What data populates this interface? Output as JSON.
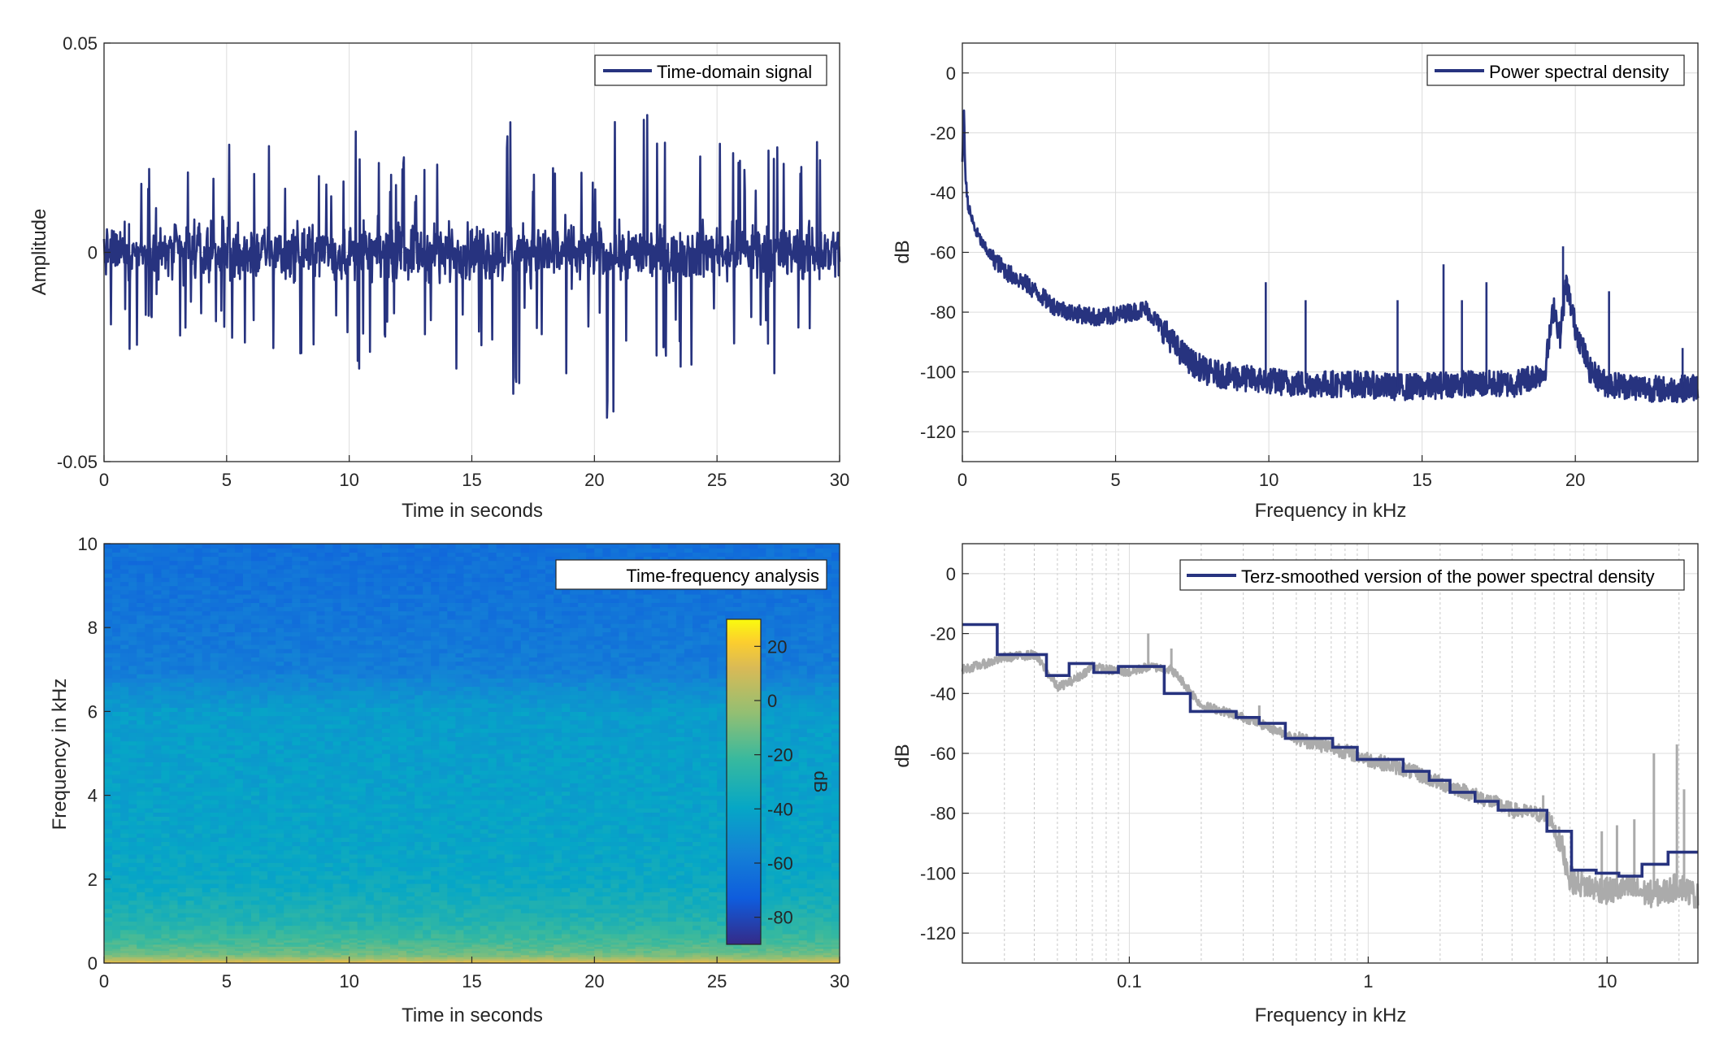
{
  "colors": {
    "series": "#27337f",
    "raw": "#ababab",
    "axis": "#262626",
    "grid": "#dcdcdc"
  },
  "chart_data": [
    {
      "type": "line",
      "xlabel": "Time in seconds",
      "ylabel": "Amplitude",
      "xlim": [
        0,
        30
      ],
      "ylim": [
        -0.05,
        0.05
      ],
      "xticks": [
        0,
        5,
        10,
        15,
        20,
        25,
        30
      ],
      "xtick_labels": [
        "0",
        "5",
        "10",
        "15",
        "20",
        "25",
        "30"
      ],
      "yticks": [
        -0.05,
        0,
        0.05
      ],
      "ytick_labels": [
        "-0.05",
        "0",
        "0.05"
      ],
      "grid": true,
      "legend_position": "top-right",
      "series": [
        {
          "name": "Time-domain signal",
          "values": [
            0.018,
            -0.014,
            0.026,
            -0.02,
            0.012,
            -0.03,
            0.022,
            -0.016,
            0.024,
            -0.018,
            0.029,
            -0.022,
            0.019,
            -0.028,
            0.021,
            -0.015,
            0.027,
            -0.024,
            0.018,
            -0.02,
            0.03,
            -0.026,
            0.023,
            -0.019,
            0.025,
            -0.017,
            0.02,
            -0.029,
            0.032,
            -0.02,
            0.024,
            -0.022,
            0.028,
            -0.036,
            0.018,
            -0.025,
            0.021,
            -0.033,
            0.026,
            -0.021,
            0.019,
            -0.041,
            0.025,
            -0.023,
            0.033,
            -0.027,
            0.022,
            -0.03,
            0.026,
            -0.019,
            0.027,
            -0.024,
            0.02,
            -0.018,
            0.029,
            -0.026,
            0.021,
            -0.02,
            0.03,
            -0.02
          ]
        }
      ]
    },
    {
      "type": "line",
      "xlabel": "Frequency in kHz",
      "ylabel": "dB",
      "xlim": [
        0,
        24
      ],
      "ylim": [
        -130,
        10
      ],
      "xticks": [
        0,
        5,
        10,
        15,
        20
      ],
      "xtick_labels": [
        "0",
        "5",
        "10",
        "15",
        "20"
      ],
      "yticks": [
        0,
        -20,
        -40,
        -60,
        -80,
        -100,
        -120
      ],
      "ytick_labels": [
        "0",
        "-20",
        "-40",
        "-60",
        "-80",
        "-100",
        "-120"
      ],
      "grid": true,
      "legend_position": "top-right",
      "series": [
        {
          "name": "Power spectral density",
          "x": [
            0,
            0.05,
            0.1,
            0.2,
            0.4,
            0.7,
            1,
            1.5,
            2,
            2.5,
            3,
            3.5,
            4,
            4.5,
            5,
            5.5,
            6,
            6.5,
            7,
            7.5,
            8,
            9,
            10,
            11,
            12,
            13,
            14,
            15,
            16,
            17,
            18,
            19,
            19.3,
            19.5,
            19.7,
            20,
            20.5,
            21,
            22,
            23,
            24
          ],
          "values": [
            -30,
            -10,
            -35,
            -45,
            -52,
            -58,
            -62,
            -67,
            -70,
            -74,
            -78,
            -80,
            -81,
            -82,
            -81,
            -80,
            -79,
            -85,
            -92,
            -97,
            -100,
            -102,
            -103,
            -104,
            -104,
            -104,
            -105,
            -105,
            -104,
            -104,
            -104,
            -100,
            -78,
            -88,
            -70,
            -85,
            -100,
            -104,
            -105,
            -106,
            -105
          ]
        }
      ],
      "spikes": [
        {
          "x": 9.9,
          "y": -70
        },
        {
          "x": 11.2,
          "y": -76
        },
        {
          "x": 14.2,
          "y": -76
        },
        {
          "x": 15.7,
          "y": -64
        },
        {
          "x": 16.3,
          "y": -76
        },
        {
          "x": 17.1,
          "y": -70
        },
        {
          "x": 19.6,
          "y": -58
        },
        {
          "x": 21.1,
          "y": -73
        },
        {
          "x": 23.5,
          "y": -92
        }
      ]
    },
    {
      "type": "heatmap",
      "xlabel": "Time in seconds",
      "ylabel": "Frequency in kHz",
      "xlim": [
        0,
        30
      ],
      "ylim": [
        0,
        10
      ],
      "xticks": [
        0,
        5,
        10,
        15,
        20,
        25,
        30
      ],
      "xtick_labels": [
        "0",
        "5",
        "10",
        "15",
        "20",
        "25",
        "30"
      ],
      "yticks": [
        0,
        2,
        4,
        6,
        8,
        10
      ],
      "ytick_labels": [
        "0",
        "2",
        "4",
        "6",
        "8",
        "10"
      ],
      "colorbar": {
        "label": "dB",
        "range": [
          -90,
          30
        ],
        "ticks": [
          20,
          0,
          -20,
          -40,
          -60,
          -80
        ],
        "tick_labels": [
          "20",
          "0",
          "-20",
          "-40",
          "-60",
          "-80"
        ],
        "colormap": "parula"
      },
      "legend_position": "top-right",
      "legend_text": "Time-frequency analysis",
      "level_profile": {
        "freq_khz": [
          0,
          0.1,
          0.2,
          0.5,
          1,
          1.5,
          2,
          3,
          4,
          5,
          6,
          6.5,
          7,
          8,
          9,
          10
        ],
        "db": [
          10,
          -10,
          -20,
          -28,
          -36,
          -40,
          -44,
          -46,
          -47,
          -48,
          -49,
          -55,
          -62,
          -64,
          -66,
          -67
        ]
      }
    },
    {
      "type": "line",
      "xlabel": "Frequency in kHz",
      "ylabel": "dB",
      "xscale": "log",
      "xlim": [
        0.02,
        24
      ],
      "ylim": [
        -130,
        10
      ],
      "xticks": [
        0.1,
        1,
        10
      ],
      "xtick_labels": [
        "0.1",
        "1",
        "10"
      ],
      "yticks": [
        0,
        -20,
        -40,
        -60,
        -80,
        -100,
        -120
      ],
      "ytick_labels": [
        "0",
        "-20",
        "-40",
        "-60",
        "-80",
        "-100",
        "-120"
      ],
      "grid": true,
      "legend_position": "top-right",
      "series": [
        {
          "name": "Terz-smoothed version of the power spectral density",
          "x": [
            0.02,
            0.028,
            0.028,
            0.045,
            0.045,
            0.056,
            0.056,
            0.071,
            0.071,
            0.09,
            0.09,
            0.14,
            0.14,
            0.18,
            0.18,
            0.28,
            0.28,
            0.35,
            0.35,
            0.45,
            0.45,
            0.71,
            0.71,
            0.9,
            0.9,
            1.4,
            1.4,
            1.8,
            1.8,
            2.2,
            2.2,
            2.8,
            2.8,
            3.5,
            3.5,
            5.6,
            5.6,
            7.1,
            7.1,
            9,
            9,
            11.2,
            11.2,
            14,
            14,
            18,
            18,
            24
          ],
          "values": [
            -17,
            -17,
            -27,
            -27,
            -34,
            -34,
            -30,
            -30,
            -33,
            -33,
            -31,
            -31,
            -40,
            -40,
            -46,
            -46,
            -48,
            -48,
            -50,
            -50,
            -55,
            -55,
            -58,
            -58,
            -62,
            -62,
            -66,
            -66,
            -69,
            -69,
            -73,
            -73,
            -76,
            -76,
            -79,
            -79,
            -86,
            -86,
            -99,
            -99,
            -100,
            -100,
            -101,
            -101,
            -97,
            -97,
            -93,
            -93
          ]
        },
        {
          "x": [
            0.02,
            0.025,
            0.03,
            0.04,
            0.05,
            0.06,
            0.07,
            0.08,
            0.1,
            0.12,
            0.15,
            0.2,
            0.25,
            0.3,
            0.4,
            0.5,
            0.7,
            1,
            1.5,
            2,
            3,
            4,
            5,
            5.8,
            6.5,
            7,
            8,
            9,
            10,
            12,
            15,
            18,
            20,
            22,
            24
          ],
          "values": [
            -32,
            -30,
            -28,
            -27,
            -38,
            -35,
            -31,
            -32,
            -33,
            -31,
            -32,
            -44,
            -46,
            -48,
            -52,
            -55,
            -58,
            -62,
            -66,
            -70,
            -75,
            -79,
            -80,
            -82,
            -92,
            -102,
            -104,
            -105,
            -106,
            -105,
            -107,
            -106,
            -104,
            -106,
            -108
          ]
        }
      ],
      "spikes": [
        {
          "x": 0.12,
          "y": -20
        },
        {
          "x": 0.15,
          "y": -25
        },
        {
          "x": 0.35,
          "y": -44
        },
        {
          "x": 0.85,
          "y": -60
        },
        {
          "x": 1.6,
          "y": -64
        },
        {
          "x": 5.4,
          "y": -74
        },
        {
          "x": 9.5,
          "y": -86
        },
        {
          "x": 11,
          "y": -84
        },
        {
          "x": 13,
          "y": -82
        },
        {
          "x": 15.7,
          "y": -60
        },
        {
          "x": 19.6,
          "y": -57
        },
        {
          "x": 21,
          "y": -72
        }
      ]
    }
  ]
}
